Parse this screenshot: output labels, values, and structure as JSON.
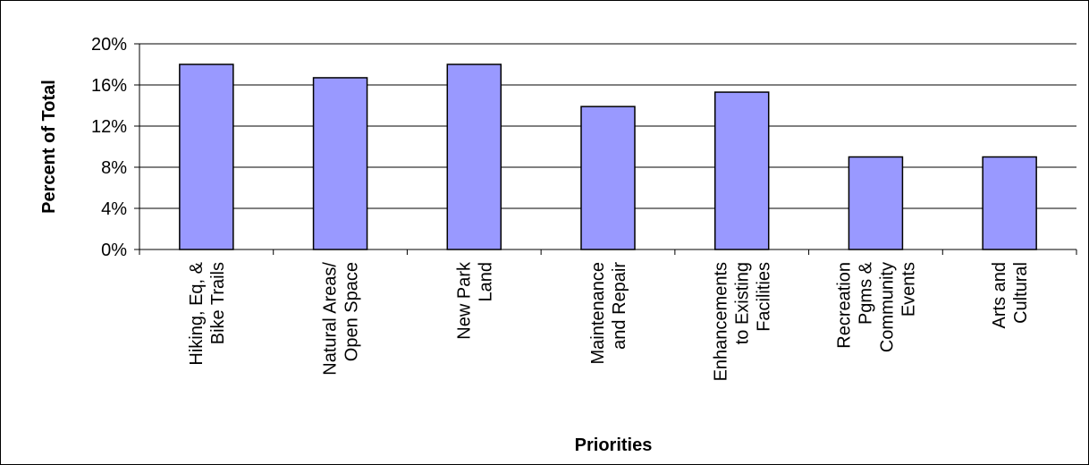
{
  "chart_data": {
    "type": "bar",
    "categories": [
      [
        "Hiking, Eq, &",
        "Bike Trails"
      ],
      [
        "Natural Areas/",
        "Open Space"
      ],
      [
        "New Park",
        "Land"
      ],
      [
        "Maintenance",
        "and Repair"
      ],
      [
        "Enhancements",
        "to Existing",
        "Facilities"
      ],
      [
        "Recreation",
        "Pgms &",
        "Community",
        "Events"
      ],
      [
        "Arts and",
        "Cultural"
      ]
    ],
    "values": [
      18,
      16.7,
      18,
      13.9,
      15.3,
      9,
      9
    ],
    "ylim": [
      0,
      20
    ],
    "yticks": [
      "0%",
      "4%",
      "8%",
      "12%",
      "16%",
      "20%"
    ],
    "ytick_values": [
      0,
      4,
      8,
      12,
      16,
      20
    ],
    "xlabel": "Priorities",
    "ylabel": "Percent of Total",
    "grid": true,
    "legend": "none",
    "bar_color": "#9999ff"
  }
}
